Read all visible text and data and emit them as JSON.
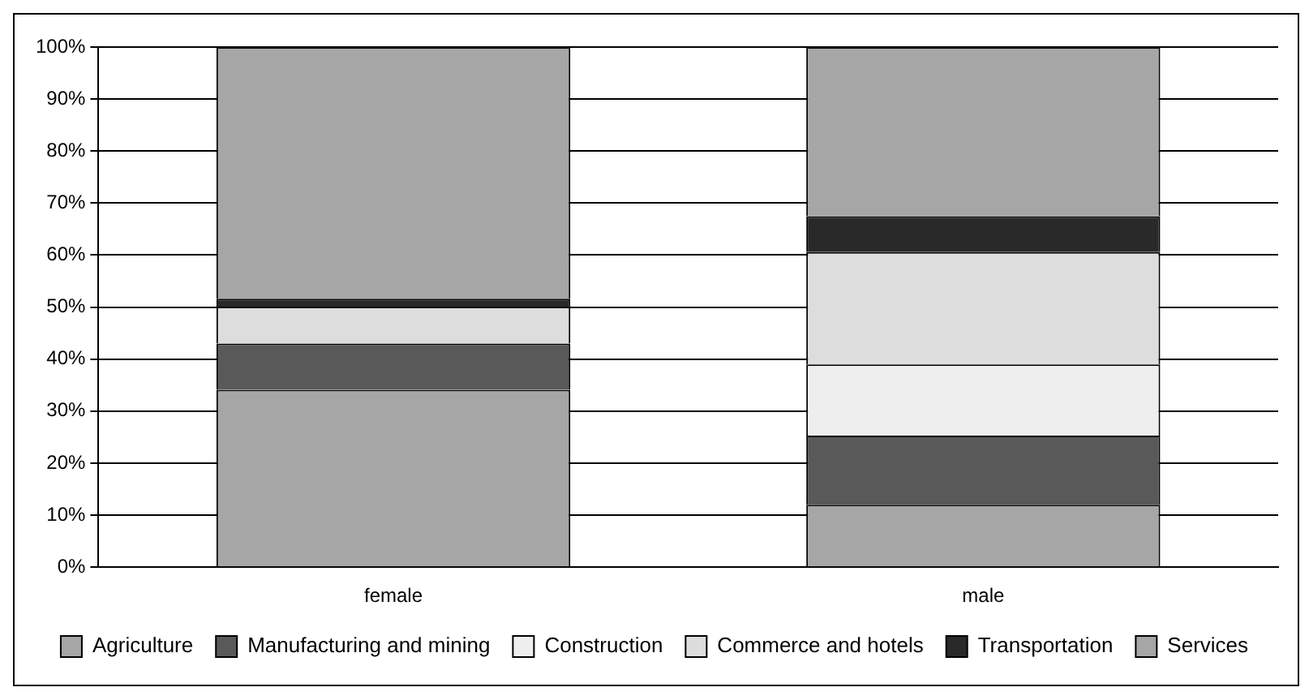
{
  "chart_data": {
    "type": "bar",
    "stacked": true,
    "categories": [
      "female",
      "male"
    ],
    "series": [
      {
        "name": "Agriculture",
        "color": "#a6a6a6",
        "values": [
          34.1,
          12.0
        ]
      },
      {
        "name": "Manufacturing and mining",
        "color": "#595959",
        "values": [
          8.9,
          13.3
        ]
      },
      {
        "name": "Construction",
        "color": "#eeeeee",
        "values": [
          0,
          13.7
        ]
      },
      {
        "name": "Commerce and hotels",
        "color": "#dddddd",
        "values": [
          7.1,
          21.6
        ]
      },
      {
        "name": "Transportation",
        "color": "#292929",
        "values": [
          1.5,
          6.9
        ]
      },
      {
        "name": "Services",
        "color": "#a6a6a6",
        "values": [
          48.4,
          32.5
        ]
      }
    ],
    "ylim": [
      0,
      100
    ],
    "yticks": [
      {
        "value": 0,
        "label": "0%"
      },
      {
        "value": 10,
        "label": "10%"
      },
      {
        "value": 20,
        "label": "20%"
      },
      {
        "value": 30,
        "label": "30%"
      },
      {
        "value": 40,
        "label": "40%"
      },
      {
        "value": 50,
        "label": "50%"
      },
      {
        "value": 60,
        "label": "60%"
      },
      {
        "value": 70,
        "label": "70%"
      },
      {
        "value": 80,
        "label": "80%"
      },
      {
        "value": 90,
        "label": "90%"
      },
      {
        "value": 100,
        "label": "100%"
      }
    ],
    "grid": "y",
    "legend": "bottom"
  }
}
